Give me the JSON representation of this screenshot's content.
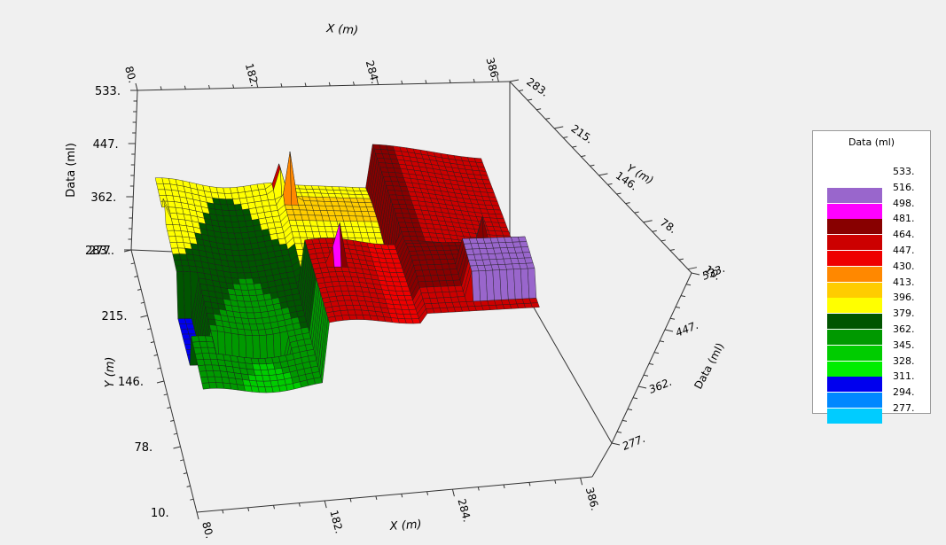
{
  "chart_data": {
    "type": "surface",
    "xlabel": "X (m)",
    "ylabel": "Y (m)",
    "zlabel": "Data (ml)",
    "x_ticks": [
      "80.",
      "182.",
      "284.",
      "386."
    ],
    "y_ticks": [
      "10.",
      "78.",
      "146.",
      "215.",
      "283."
    ],
    "z_ticks": [
      "277.",
      "362.",
      "447.",
      "533."
    ],
    "back_y_ticks": [
      "10.",
      "78.",
      "146.",
      "215.",
      "283."
    ],
    "xlim": [
      80,
      386
    ],
    "ylim": [
      10,
      283
    ],
    "zlim": [
      277,
      533
    ],
    "legend": {
      "title": "Data (ml)",
      "entries": [
        {
          "label": "533.",
          "color": "#ffffff"
        },
        {
          "label": "516.",
          "color": "#9966cc"
        },
        {
          "label": "498.",
          "color": "#ff00ff"
        },
        {
          "label": "481.",
          "color": "#880000"
        },
        {
          "label": "464.",
          "color": "#cc0000"
        },
        {
          "label": "447.",
          "color": "#ee0000"
        },
        {
          "label": "430.",
          "color": "#ff8800"
        },
        {
          "label": "413.",
          "color": "#ffcc00"
        },
        {
          "label": "396.",
          "color": "#ffff00"
        },
        {
          "label": "379.",
          "color": "#005500"
        },
        {
          "label": "362.",
          "color": "#009900"
        },
        {
          "label": "345.",
          "color": "#00cc00"
        },
        {
          "label": "328.",
          "color": "#00ee00"
        },
        {
          "label": "311.",
          "color": "#0000ee"
        },
        {
          "label": "294.",
          "color": "#0088ff"
        },
        {
          "label": "277.",
          "color": "#00ccff"
        }
      ]
    }
  }
}
